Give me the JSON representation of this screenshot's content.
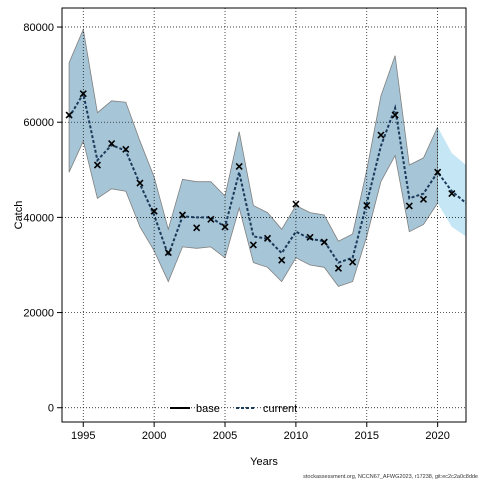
{
  "chart_data": {
    "type": "line",
    "xlabel": "Years",
    "ylabel": "Catch",
    "xlim": [
      1993.5,
      2022
    ],
    "ylim": [
      -3000,
      84000
    ],
    "x_ticks": [
      1995,
      2000,
      2005,
      2010,
      2015,
      2020
    ],
    "y_ticks": [
      0,
      20000,
      40000,
      60000,
      80000
    ],
    "x_tick_labels": [
      "1995",
      "2000",
      "2005",
      "2010",
      "2015",
      "2020"
    ],
    "y_tick_labels": [
      "0",
      "20000",
      "40000",
      "60000",
      "80000"
    ],
    "grid": true,
    "legend_position": "bottom",
    "observed": {
      "x": [
        1994,
        1995,
        1996,
        1997,
        1998,
        1999,
        2000,
        2001,
        2002,
        2003,
        2004,
        2005,
        2006,
        2007,
        2008,
        2009,
        2010,
        2011,
        2012,
        2013,
        2014,
        2015,
        2016,
        2017,
        2018,
        2019,
        2020,
        2021
      ],
      "y": [
        61500,
        66000,
        51000,
        55500,
        54300,
        47200,
        41300,
        32600,
        40500,
        37800,
        39600,
        38000,
        50700,
        34200,
        35600,
        31000,
        42800,
        35800,
        34800,
        29300,
        30600,
        42500,
        57300,
        61500,
        42400,
        43800,
        49500,
        45000
      ]
    },
    "series": [
      {
        "name": "base",
        "color": "#000000",
        "style": "solid",
        "x": [],
        "y": []
      },
      {
        "name": "current",
        "color": "#1a3a5c",
        "style": "dashed",
        "x": [
          1994,
          1995,
          1996,
          1997,
          1998,
          1999,
          2000,
          2001,
          2002,
          2003,
          2004,
          2005,
          2006,
          2007,
          2008,
          2009,
          2010,
          2011,
          2012,
          2013,
          2014,
          2015,
          2016,
          2017,
          2018,
          2019,
          2020,
          2021,
          2022
        ],
        "y": [
          61000,
          66000,
          52000,
          55200,
          54000,
          47000,
          40500,
          32000,
          40200,
          40000,
          40000,
          38000,
          49500,
          36000,
          35500,
          32500,
          37000,
          35500,
          35000,
          30500,
          31500,
          43000,
          55000,
          63000,
          44000,
          45000,
          49500,
          45500,
          43000
        ],
        "lower": [
          49500,
          56000,
          44000,
          46000,
          45500,
          38000,
          33000,
          26500,
          33800,
          33500,
          33800,
          31500,
          42000,
          30500,
          29500,
          26500,
          31500,
          30000,
          29500,
          25500,
          26500,
          36000,
          47500,
          53000,
          37000,
          38500,
          43000,
          38000,
          36000
        ],
        "upper": [
          72500,
          79500,
          62000,
          64500,
          64200,
          56000,
          48500,
          37500,
          48000,
          47500,
          47500,
          44500,
          58000,
          42500,
          41000,
          37500,
          42500,
          41000,
          40500,
          35000,
          36500,
          50000,
          65500,
          74000,
          51000,
          52500,
          59000,
          53500,
          51000
        ]
      }
    ],
    "band_color": "#a6c5d6",
    "band_edge_color": "#808080",
    "projection_band_color": "#c5e6f5",
    "projection_start": 2020,
    "marker": "x"
  },
  "footer_text": "stockassessment.org, NCCN67_AFWG2023, r17238, git:ec2c2a0c8dde"
}
